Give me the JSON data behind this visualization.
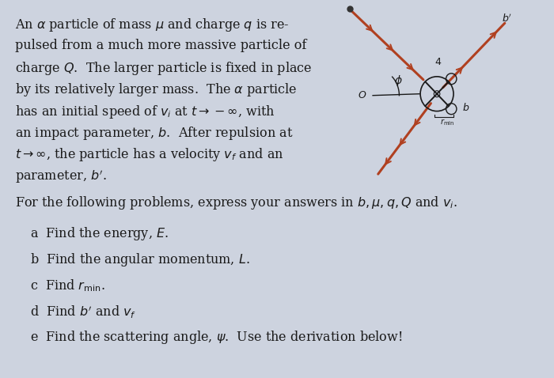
{
  "bg_color": "#cdd3df",
  "text_color": "#1a1a1a",
  "fig_width": 7.0,
  "fig_height": 4.78,
  "arrow_color": "#b04020",
  "diagram_color": "#1a1a1a",
  "para_lines": [
    "An $\\alpha$ particle of mass $\\mu$ and charge $q$ is re-",
    "pulsed from a much more massive particle of",
    "charge $Q$.  The larger particle is fixed in place",
    "by its relatively larger mass.  The $\\alpha$ particle",
    "has an initial speed of $v_i$ at $t \\to -\\infty$, with",
    "an impact parameter, $b$.  After repulsion at",
    "$t \\to \\infty$, the particle has a velocity $v_f$ and an",
    "parameter, $b'$."
  ],
  "subline": "For the following problems, express your answers in $b, \\mu, q, Q$ and $v_i$.",
  "items": [
    "a  Find the energy, $E$.",
    "b  Find the angular momentum, $L$.",
    "c  Find $r_{\\rm min}$.",
    "d  Find $b'$ and $v_f$",
    "e  Find the scattering angle, $\\psi$.  Use the derivation below!"
  ]
}
